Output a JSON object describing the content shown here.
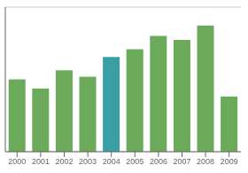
{
  "chart_data": {
    "type": "bar",
    "categories": [
      "2000",
      "2001",
      "2002",
      "2003",
      "2004",
      "2005",
      "2006",
      "2007",
      "2008",
      "2009"
    ],
    "values": [
      55,
      48,
      62,
      57,
      72,
      78,
      88,
      85,
      96,
      42
    ],
    "colors": [
      "#6aaa5a",
      "#6aaa5a",
      "#6aaa5a",
      "#6aaa5a",
      "#3a9ea5",
      "#6aaa5a",
      "#6aaa5a",
      "#6aaa5a",
      "#6aaa5a",
      "#6aaa5a"
    ],
    "ylim": [
      0,
      110
    ],
    "yticks": [
      0,
      20,
      40,
      60,
      80,
      100
    ],
    "grid": true,
    "tick_labels": "x"
  }
}
